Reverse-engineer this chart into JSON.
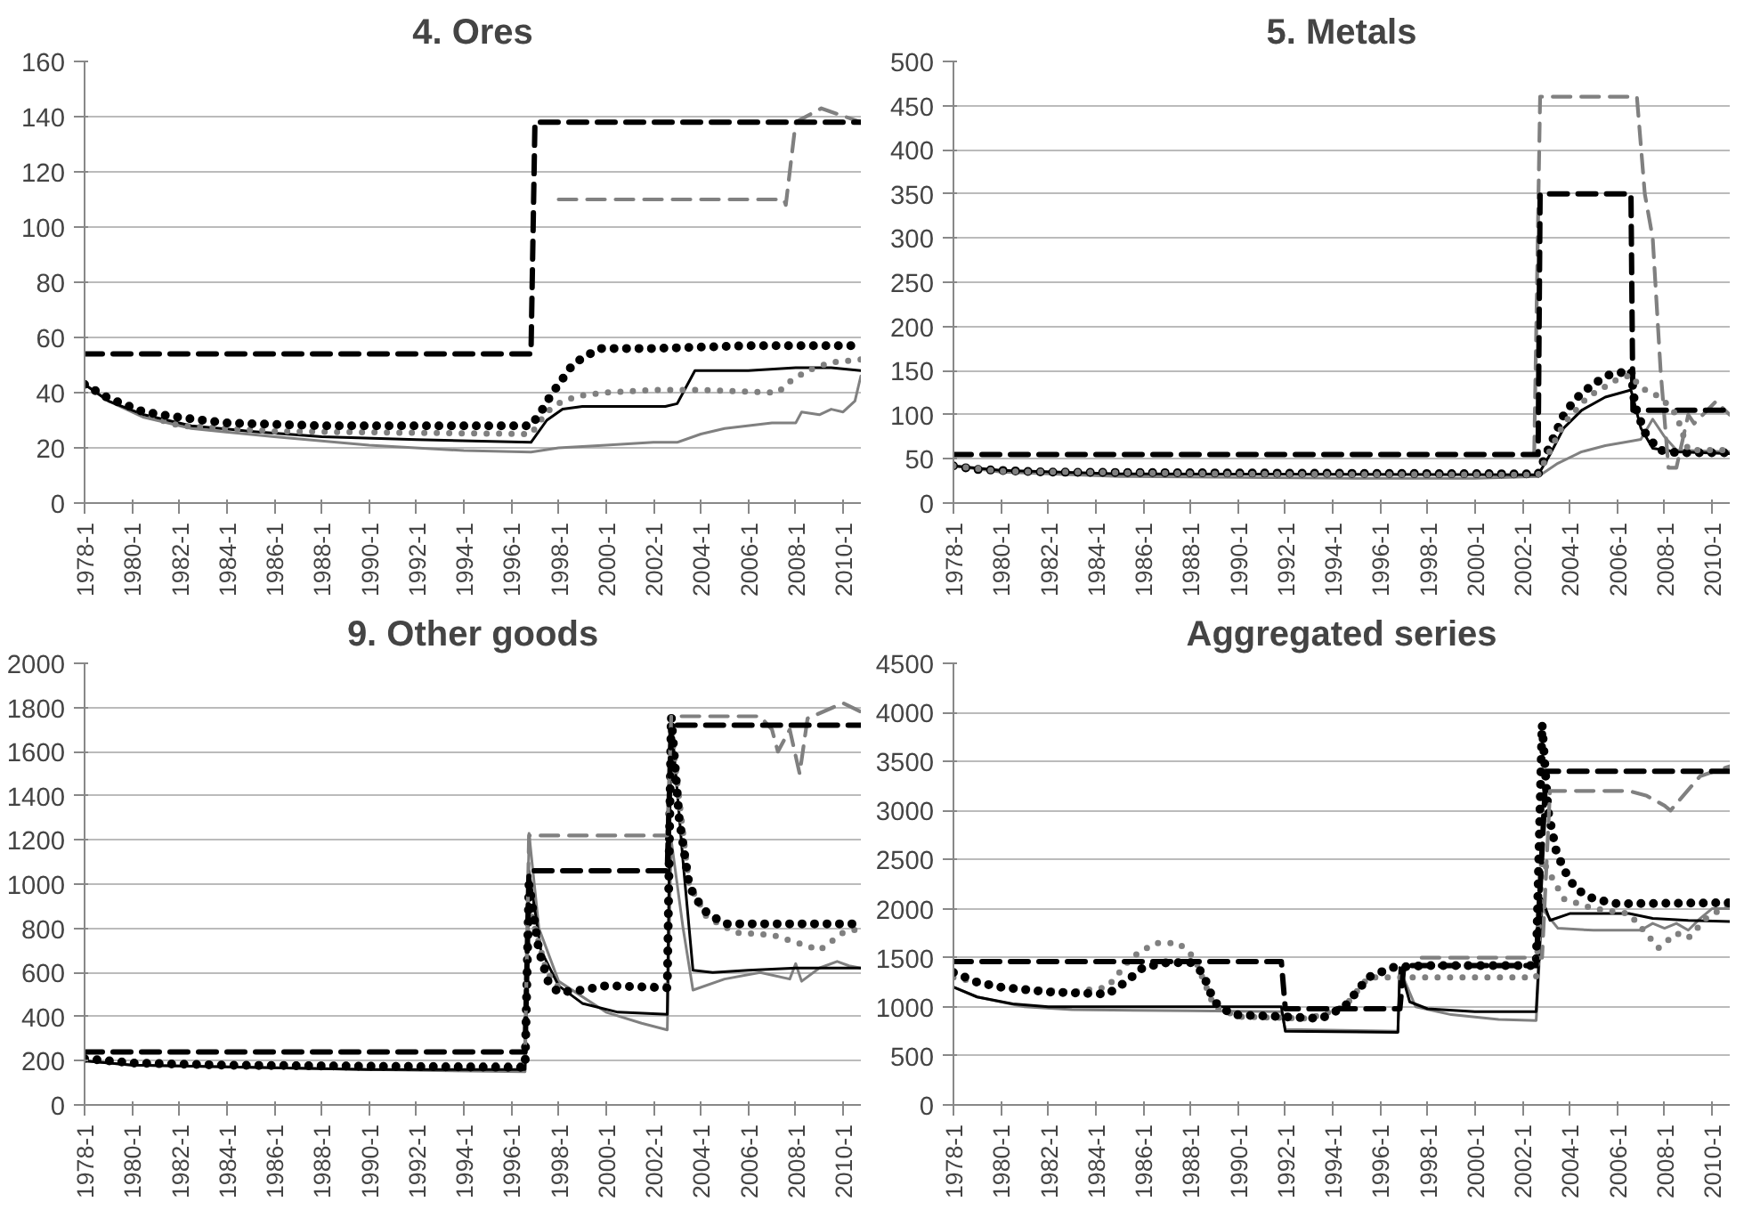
{
  "chart_data": [
    {
      "type": "line",
      "title": "4. Ores",
      "xlim": [
        "1978-01",
        "2010-10"
      ],
      "ylim": [
        0,
        160
      ],
      "yticks": [
        0,
        20,
        40,
        60,
        80,
        100,
        120,
        140,
        160
      ],
      "grid": "y",
      "xticks": [
        {
          "value": "1978-01",
          "label": "1978-1"
        },
        {
          "value": "1980-01",
          "label": "1980-1"
        },
        {
          "value": "1982-01",
          "label": "1982-1"
        },
        {
          "value": "1984-01",
          "label": "1984-1"
        },
        {
          "value": "1986-01",
          "label": "1986-1"
        },
        {
          "value": "1988-01",
          "label": "1988-1"
        },
        {
          "value": "1990-01",
          "label": "1990-1"
        },
        {
          "value": "1992-01",
          "label": "1992-1"
        },
        {
          "value": "1994-01",
          "label": "1994-1"
        },
        {
          "value": "1996-01",
          "label": "1996-1"
        },
        {
          "value": "1998-01",
          "label": "1998-1"
        },
        {
          "value": "2000-01",
          "label": "2000-1"
        },
        {
          "value": "2002-01",
          "label": "2002-1"
        },
        {
          "value": "2004-01",
          "label": "2004-1"
        },
        {
          "value": "2006-01",
          "label": "2006-1"
        },
        {
          "value": "2008-01",
          "label": "2008-1"
        },
        {
          "value": "2010-01",
          "label": "2010-1"
        }
      ],
      "series": [
        {
          "color": "#808080",
          "line_style": "solid",
          "x": [
            "1978-01",
            "1979-01",
            "1980-07",
            "1982-07",
            "1986-01",
            "1990-01",
            "1994-01",
            "1996-11",
            "1998-01",
            "2000-01",
            "2002-01",
            "2003-01",
            "2004-01",
            "2005-01",
            "2007-01",
            "2008-01",
            "2008-04",
            "2009-01",
            "2009-07",
            "2010-01",
            "2010-07",
            "2010-10"
          ],
          "values": [
            43,
            37,
            31,
            27,
            24,
            21,
            19,
            18.5,
            20,
            21,
            22,
            22,
            25,
            27,
            29,
            29,
            33,
            32,
            34,
            33,
            37,
            46
          ]
        },
        {
          "color": "#000000",
          "line_style": "solid",
          "x": [
            "1978-01",
            "1979-01",
            "1980-07",
            "1982-07",
            "1985-01",
            "1988-01",
            "1992-01",
            "1996-11",
            "1997-07",
            "1998-03",
            "1999-01",
            "2002-07",
            "2003-01",
            "2003-10",
            "2006-01",
            "2008-01",
            "2009-07",
            "2010-10"
          ],
          "values": [
            43,
            37,
            32,
            28,
            26,
            24,
            23,
            22,
            30,
            34,
            35,
            35,
            36,
            48,
            48,
            49,
            49,
            48
          ]
        },
        {
          "color": "#808080",
          "line_style": "dotted",
          "x": [
            "1978-01",
            "1979-01",
            "1980-07",
            "1982-01",
            "1986-01",
            "1996-11",
            "1997-07",
            "1998-03",
            "1999-01",
            "2000-01",
            "2002-01",
            "2004-01",
            "2007-04",
            "2007-10",
            "2008-07",
            "2009-07",
            "2010-10"
          ],
          "values": [
            43,
            38,
            32,
            28,
            26,
            25,
            33,
            37,
            39,
            40,
            41,
            41,
            40,
            44,
            48,
            51,
            52
          ]
        },
        {
          "color": "#000000",
          "line_style": "dotted",
          "x": [
            "1978-01",
            "1979-01",
            "1980-07",
            "1982-01",
            "1984-01",
            "1988-01",
            "1996-11",
            "1997-04",
            "1997-09",
            "1998-03",
            "1998-08",
            "1999-02",
            "1999-10",
            "2002-01",
            "2006-01",
            "2010-10"
          ],
          "values": [
            43,
            38,
            33,
            31,
            29,
            28,
            28,
            33,
            39,
            45,
            50,
            53,
            56,
            56,
            57,
            57
          ]
        },
        {
          "color": "#808080",
          "line_style": "dashed",
          "x": [
            "1998-01",
            "2007-07",
            "2007-08",
            "2008-01",
            "2009-02",
            "2010-10"
          ],
          "values": [
            110,
            110,
            108,
            138,
            143,
            138
          ]
        },
        {
          "color": "#000000",
          "line_style": "dashed",
          "x": [
            "1978-01",
            "1996-11",
            "1997-01",
            "2010-10"
          ],
          "values": [
            54,
            54,
            138,
            138
          ]
        }
      ]
    },
    {
      "type": "line",
      "title": "5. Metals",
      "xlim": [
        "1978-01",
        "2010-10"
      ],
      "ylim": [
        0,
        500
      ],
      "yticks": [
        0,
        50,
        100,
        150,
        200,
        250,
        300,
        350,
        400,
        450,
        500
      ],
      "grid": "y",
      "xticks": [
        {
          "value": "1978-01",
          "label": "1978-1"
        },
        {
          "value": "1980-01",
          "label": "1980-1"
        },
        {
          "value": "1982-01",
          "label": "1982-1"
        },
        {
          "value": "1984-01",
          "label": "1984-1"
        },
        {
          "value": "1986-01",
          "label": "1986-1"
        },
        {
          "value": "1988-01",
          "label": "1988-1"
        },
        {
          "value": "1990-01",
          "label": "1990-1"
        },
        {
          "value": "1992-01",
          "label": "1992-1"
        },
        {
          "value": "1994-01",
          "label": "1994-1"
        },
        {
          "value": "1996-01",
          "label": "1996-1"
        },
        {
          "value": "1998-01",
          "label": "1998-1"
        },
        {
          "value": "2000-01",
          "label": "2000-1"
        },
        {
          "value": "2002-01",
          "label": "2002-1"
        },
        {
          "value": "2004-01",
          "label": "2004-1"
        },
        {
          "value": "2006-01",
          "label": "2006-1"
        },
        {
          "value": "2008-01",
          "label": "2008-1"
        },
        {
          "value": "2010-01",
          "label": "2010-1"
        }
      ],
      "series": [
        {
          "color": "#808080",
          "line_style": "solid",
          "x": [
            "1978-01",
            "1980-01",
            "1985-01",
            "1995-01",
            "2000-01",
            "2002-09",
            "2003-07",
            "2004-07",
            "2005-07",
            "2006-08",
            "2007-01",
            "2007-07",
            "2008-01",
            "2008-07",
            "2010-10"
          ],
          "values": [
            42,
            35,
            30,
            28,
            28,
            30,
            45,
            58,
            65,
            70,
            72,
            95,
            75,
            60,
            58
          ]
        },
        {
          "color": "#000000",
          "line_style": "solid",
          "x": [
            "1978-01",
            "1980-01",
            "1985-01",
            "2002-09",
            "2003-03",
            "2003-10",
            "2004-07",
            "2005-07",
            "2006-08",
            "2007-01",
            "2007-07",
            "2008-07",
            "2010-10"
          ],
          "values": [
            42,
            37,
            33,
            32,
            55,
            85,
            105,
            120,
            128,
            85,
            62,
            58,
            56
          ]
        },
        {
          "color": "#000000",
          "line_style": "dotted",
          "x": [
            "1978-01",
            "1979-01",
            "1982-01",
            "1990-01",
            "2002-09",
            "2003-02",
            "2003-06",
            "2003-10",
            "2004-04",
            "2005-01",
            "2005-09",
            "2006-08",
            "2006-10",
            "2007-03",
            "2007-10",
            "2008-07",
            "2010-10"
          ],
          "values": [
            42,
            38,
            35,
            34,
            33,
            60,
            80,
            100,
            118,
            135,
            145,
            150,
            110,
            80,
            60,
            57,
            57
          ]
        },
        {
          "color": "#808080",
          "line_style": "dashed",
          "x": [
            "2002-07",
            "2002-10",
            "2006-11",
            "2007-03",
            "2007-07",
            "2007-11",
            "2008-03",
            "2008-07",
            "2009-01",
            "2009-04",
            "2010-03",
            "2010-10"
          ],
          "values": [
            55,
            460,
            460,
            350,
            300,
            150,
            40,
            40,
            100,
            90,
            115,
            100
          ]
        },
        {
          "color": "#000000",
          "line_style": "dashed",
          "x": [
            "1978-01",
            "2002-09",
            "2002-10",
            "2006-08",
            "2006-09",
            "2010-10"
          ],
          "values": [
            55,
            55,
            350,
            350,
            105,
            105
          ]
        },
        {
          "color": "#808080",
          "line_style": "dotted",
          "x": [
            "1978-01",
            "1980-01",
            "1990-01",
            "2002-09",
            "2003-02",
            "2003-10",
            "2004-10",
            "2006-01",
            "2006-08",
            "2007-01",
            "2007-07",
            "2008-01",
            "2008-07",
            "2009-01",
            "2010-10"
          ],
          "values": [
            42,
            36,
            33,
            32,
            55,
            90,
            120,
            140,
            145,
            130,
            125,
            115,
            100,
            60,
            60
          ]
        }
      ]
    },
    {
      "type": "line",
      "title": "9. Other goods",
      "xlim": [
        "1978-01",
        "2010-10"
      ],
      "ylim": [
        0,
        2000
      ],
      "yticks": [
        0,
        200,
        400,
        600,
        800,
        1000,
        1200,
        1400,
        1600,
        1800,
        2000
      ],
      "grid": "y",
      "xticks": [
        {
          "value": "1978-01",
          "label": "1978-1"
        },
        {
          "value": "1980-01",
          "label": "1980-1"
        },
        {
          "value": "1982-01",
          "label": "1982-1"
        },
        {
          "value": "1984-01",
          "label": "1984-1"
        },
        {
          "value": "1986-01",
          "label": "1986-1"
        },
        {
          "value": "1988-01",
          "label": "1988-1"
        },
        {
          "value": "1990-01",
          "label": "1990-1"
        },
        {
          "value": "1992-01",
          "label": "1992-1"
        },
        {
          "value": "1994-01",
          "label": "1994-1"
        },
        {
          "value": "1996-01",
          "label": "1996-1"
        },
        {
          "value": "1998-01",
          "label": "1998-1"
        },
        {
          "value": "2000-01",
          "label": "2000-1"
        },
        {
          "value": "2002-01",
          "label": "2002-1"
        },
        {
          "value": "2004-01",
          "label": "2004-1"
        },
        {
          "value": "2006-01",
          "label": "2006-1"
        },
        {
          "value": "2008-01",
          "label": "2008-1"
        },
        {
          "value": "2010-01",
          "label": "2010-1"
        }
      ],
      "series": [
        {
          "color": "#808080",
          "line_style": "solid",
          "x": [
            "1978-01",
            "1980-01",
            "1990-01",
            "1996-08",
            "1996-10",
            "1997-03",
            "1998-01",
            "2000-01",
            "2001-07",
            "2002-08",
            "2002-10",
            "2003-04",
            "2003-09",
            "2005-01",
            "2006-07",
            "2007-10",
            "2008-01",
            "2008-04",
            "2009-01",
            "2009-10",
            "2010-04",
            "2010-10"
          ],
          "values": [
            200,
            180,
            160,
            150,
            1230,
            800,
            560,
            420,
            370,
            340,
            1200,
            800,
            520,
            570,
            600,
            570,
            640,
            560,
            620,
            650,
            630,
            620
          ]
        },
        {
          "color": "#000000",
          "line_style": "solid",
          "x": [
            "1978-01",
            "1980-01",
            "1990-01",
            "1996-08",
            "1996-10",
            "1997-04",
            "1998-01",
            "1999-01",
            "2000-07",
            "2002-08",
            "2002-10",
            "2003-04",
            "2003-09",
            "2004-07",
            "2006-01",
            "2008-01",
            "2010-10"
          ],
          "values": [
            200,
            180,
            160,
            160,
            1060,
            700,
            540,
            460,
            420,
            410,
            1750,
            1100,
            610,
            600,
            610,
            620,
            620
          ]
        },
        {
          "color": "#808080",
          "line_style": "dotted",
          "x": [
            "1978-01",
            "1980-01",
            "1990-01",
            "1996-08",
            "1996-10",
            "1997-07",
            "1998-03",
            "2000-01",
            "2002-08",
            "2002-10",
            "2003-07",
            "2004-04",
            "2005-07",
            "2007-01",
            "2008-07",
            "2009-01",
            "2010-01",
            "2010-10"
          ],
          "values": [
            210,
            190,
            180,
            180,
            900,
            600,
            510,
            540,
            540,
            1700,
            1000,
            850,
            780,
            770,
            720,
            700,
            780,
            800
          ]
        },
        {
          "color": "#000000",
          "line_style": "dotted",
          "x": [
            "1978-01",
            "1980-01",
            "1984-01",
            "1996-08",
            "1996-10",
            "1997-03",
            "1997-08",
            "1998-01",
            "1999-01",
            "2000-01",
            "2002-08",
            "2002-10",
            "2003-02",
            "2003-07",
            "2003-10",
            "2004-04",
            "2005-01",
            "2010-10"
          ],
          "values": [
            210,
            190,
            180,
            170,
            1000,
            700,
            550,
            510,
            520,
            540,
            530,
            1760,
            1300,
            1000,
            940,
            870,
            820,
            820
          ]
        },
        {
          "color": "#808080",
          "line_style": "dashed",
          "x": [
            "1996-08",
            "1996-10",
            "2002-08",
            "2002-10",
            "2006-07",
            "2007-01",
            "2007-04",
            "2007-10",
            "2008-03",
            "2008-07",
            "2010-01",
            "2010-10"
          ],
          "values": [
            240,
            1220,
            1220,
            1760,
            1760,
            1700,
            1600,
            1700,
            1500,
            1750,
            1820,
            1780
          ]
        },
        {
          "color": "#000000",
          "line_style": "dashed",
          "x": [
            "1978-01",
            "1996-08",
            "1996-10",
            "2002-08",
            "2002-10",
            "2010-10"
          ],
          "values": [
            240,
            240,
            1060,
            1060,
            1720,
            1720
          ]
        }
      ]
    },
    {
      "type": "line",
      "title": "Aggregated series",
      "xlim": [
        "1978-01",
        "2010-10"
      ],
      "ylim": [
        0,
        4500
      ],
      "yticks": [
        0,
        500,
        1000,
        1500,
        2000,
        2500,
        3000,
        3500,
        4000,
        4500
      ],
      "grid": "y",
      "xticks": [
        {
          "value": "1978-01",
          "label": "1978-1"
        },
        {
          "value": "1980-01",
          "label": "1980-1"
        },
        {
          "value": "1982-01",
          "label": "1982-1"
        },
        {
          "value": "1984-01",
          "label": "1984-1"
        },
        {
          "value": "1986-01",
          "label": "1986-1"
        },
        {
          "value": "1988-01",
          "label": "1988-1"
        },
        {
          "value": "1990-01",
          "label": "1990-1"
        },
        {
          "value": "1992-01",
          "label": "1992-1"
        },
        {
          "value": "1994-01",
          "label": "1994-1"
        },
        {
          "value": "1996-01",
          "label": "1996-1"
        },
        {
          "value": "1998-01",
          "label": "1998-1"
        },
        {
          "value": "2000-01",
          "label": "2000-1"
        },
        {
          "value": "2002-01",
          "label": "2002-1"
        },
        {
          "value": "2004-01",
          "label": "2004-1"
        },
        {
          "value": "2006-01",
          "label": "2006-1"
        },
        {
          "value": "2008-01",
          "label": "2008-1"
        },
        {
          "value": "2010-01",
          "label": "2010-1"
        }
      ],
      "series": [
        {
          "color": "#808080",
          "line_style": "solid",
          "x": [
            "1978-01",
            "1979-01",
            "1981-01",
            "1983-01",
            "1988-01",
            "1991-11",
            "1992-01",
            "1996-10",
            "1996-11",
            "1997-07",
            "1999-01",
            "2001-01",
            "2002-08",
            "2002-11",
            "2003-07",
            "2005-01",
            "2007-01",
            "2007-07",
            "2008-01",
            "2008-07",
            "2009-01",
            "2009-07",
            "2010-01",
            "2010-10"
          ],
          "values": [
            1200,
            1100,
            1000,
            970,
            960,
            950,
            770,
            750,
            1380,
            1000,
            920,
            870,
            860,
            2000,
            1800,
            1780,
            1780,
            1850,
            1800,
            1850,
            1780,
            1900,
            2000,
            2000
          ]
        },
        {
          "color": "#000000",
          "line_style": "solid",
          "x": [
            "1978-01",
            "1979-01",
            "1980-07",
            "1982-01",
            "1991-11",
            "1992-01",
            "1996-10",
            "1996-11",
            "1997-04",
            "1998-01",
            "2000-01",
            "2002-08",
            "2002-11",
            "2003-03",
            "2004-01",
            "2006-07",
            "2007-07",
            "2009-01",
            "2010-10"
          ],
          "values": [
            1200,
            1100,
            1030,
            1000,
            1000,
            750,
            740,
            1400,
            1050,
            980,
            950,
            950,
            2100,
            1880,
            1950,
            1950,
            1900,
            1880,
            1870
          ]
        },
        {
          "color": "#808080",
          "line_style": "dotted",
          "x": [
            "1978-01",
            "1980-01",
            "1983-01",
            "1984-07",
            "1985-07",
            "1986-07",
            "1987-07",
            "1988-03",
            "1989-01",
            "1990-01",
            "1993-01",
            "1994-07",
            "1995-07",
            "1997-01",
            "2002-08",
            "2002-11",
            "2003-10",
            "2005-01",
            "2006-07",
            "2007-10",
            "2008-07",
            "2009-01",
            "2009-10",
            "2010-10"
          ],
          "values": [
            1300,
            1200,
            1150,
            1200,
            1500,
            1650,
            1650,
            1500,
            1000,
            900,
            880,
            1000,
            1300,
            1300,
            1300,
            2500,
            2100,
            2000,
            1950,
            1600,
            1750,
            1700,
            1900,
            2050
          ]
        },
        {
          "color": "#000000",
          "line_style": "dotted",
          "x": [
            "1978-01",
            "1979-01",
            "1980-01",
            "1982-01",
            "1984-07",
            "1985-04",
            "1986-01",
            "1987-01",
            "1988-01",
            "1988-07",
            "1989-01",
            "1989-10",
            "1991-11",
            "1993-07",
            "1994-07",
            "1995-07",
            "1996-07",
            "1998-01",
            "2002-08",
            "2002-11",
            "2003-02",
            "2003-06",
            "2003-10",
            "2004-04",
            "2005-01",
            "2006-01",
            "2010-10"
          ],
          "values": [
            1350,
            1250,
            1200,
            1150,
            1130,
            1250,
            1400,
            1450,
            1450,
            1350,
            1050,
            920,
            900,
            880,
            1000,
            1300,
            1400,
            1420,
            1420,
            3880,
            3000,
            2600,
            2400,
            2200,
            2100,
            2050,
            2060
          ]
        },
        {
          "color": "#808080",
          "line_style": "dashed",
          "x": [
            "1997-10",
            "2002-11",
            "2003-03",
            "2006-07",
            "2007-04",
            "2008-01",
            "2008-04",
            "2009-07",
            "2010-10"
          ],
          "values": [
            1500,
            1500,
            3200,
            3200,
            3150,
            3050,
            3000,
            3350,
            3450
          ]
        },
        {
          "color": "#000000",
          "line_style": "dashed",
          "x": [
            "1978-01",
            "1991-11",
            "1992-01",
            "1996-11",
            "1997-01",
            "2002-08",
            "2003-01",
            "2010-10"
          ],
          "values": [
            1460,
            1460,
            980,
            980,
            1420,
            1420,
            3400,
            3400
          ]
        }
      ]
    }
  ]
}
